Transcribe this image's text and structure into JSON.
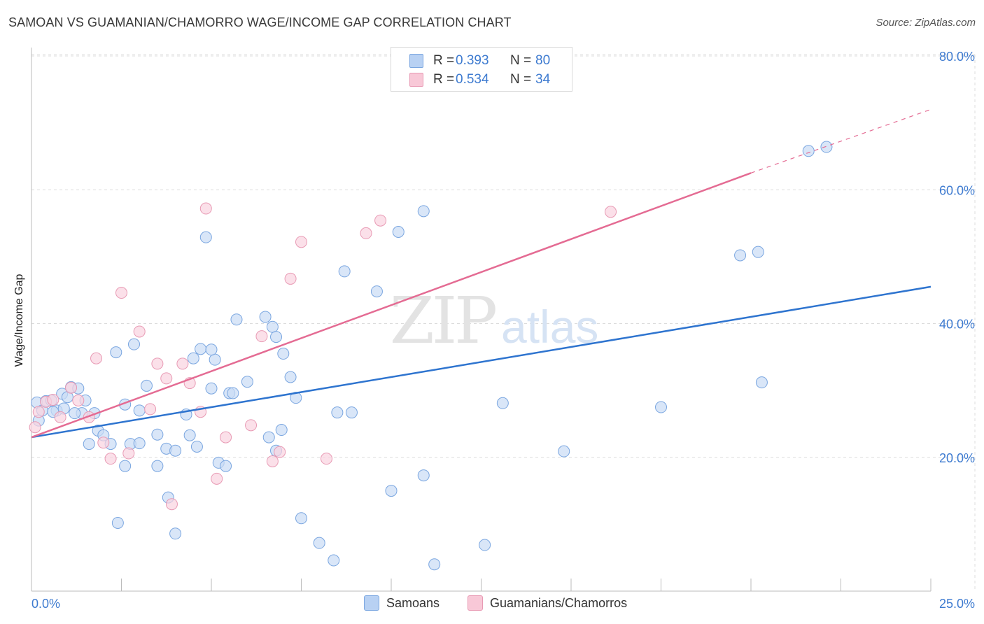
{
  "title": "SAMOAN VS GUAMANIAN/CHAMORRO WAGE/INCOME GAP CORRELATION CHART",
  "source": "Source: ZipAtlas.com",
  "watermark": {
    "zip": "ZIP",
    "atlas": "atlas"
  },
  "legend": {
    "r_label": "R =",
    "n_label": "N =",
    "series": [
      {
        "name": "Samoans",
        "r": "0.393",
        "n": "80",
        "fill": "#b8d1f3",
        "stroke": "#7aa6e0"
      },
      {
        "name": "Guamanians/Chamorros",
        "r": "0.534",
        "n": "34",
        "fill": "#f8c8d7",
        "stroke": "#e89ab4"
      }
    ]
  },
  "chart_data": {
    "type": "scatter",
    "title": "SAMOAN VS GUAMANIAN/CHAMORRO WAGE/INCOME GAP CORRELATION CHART",
    "xlabel": "",
    "ylabel": "Wage/Income Gap",
    "xlim": [
      0,
      25
    ],
    "ylim": [
      0,
      80
    ],
    "x_tick_labels": [
      "0.0%",
      "25.0%"
    ],
    "y_ticks": [
      20,
      40,
      60,
      80
    ],
    "y_tick_labels": [
      "20.0%",
      "40.0%",
      "60.0%",
      "80.0%"
    ],
    "grid": true,
    "colors": {
      "blue_point_fill": "#c9dbf5",
      "blue_point_stroke": "#7aa6e0",
      "pink_point_fill": "#f9d3df",
      "pink_point_stroke": "#e89ab4",
      "blue_line": "#2e74cf",
      "pink_line": "#e46b93",
      "tick_label": "#3e7bd0"
    },
    "series": [
      {
        "name": "Samoans",
        "trend": {
          "x0": 0,
          "y0": 23.0,
          "x1": 25,
          "y1": 45.5
        },
        "points": [
          [
            0.15,
            28.2
          ],
          [
            0.3,
            27.0
          ],
          [
            0.4,
            28.4
          ],
          [
            0.55,
            28.5
          ],
          [
            0.7,
            27.0
          ],
          [
            0.85,
            29.5
          ],
          [
            1.0,
            29.0
          ],
          [
            1.1,
            30.5
          ],
          [
            1.3,
            30.3
          ],
          [
            1.5,
            28.5
          ],
          [
            1.4,
            26.6
          ],
          [
            1.2,
            26.6
          ],
          [
            1.75,
            26.6
          ],
          [
            1.85,
            24.0
          ],
          [
            2.0,
            23.3
          ],
          [
            2.2,
            22.0
          ],
          [
            2.35,
            35.7
          ],
          [
            2.6,
            27.9
          ],
          [
            2.85,
            36.9
          ],
          [
            3.0,
            27.0
          ],
          [
            3.2,
            30.7
          ],
          [
            2.75,
            22.0
          ],
          [
            2.6,
            18.7
          ],
          [
            3.0,
            22.1
          ],
          [
            3.5,
            23.4
          ],
          [
            3.75,
            21.3
          ],
          [
            3.5,
            18.7
          ],
          [
            4.0,
            21.0
          ],
          [
            4.3,
            26.4
          ],
          [
            4.4,
            23.3
          ],
          [
            4.5,
            34.8
          ],
          [
            4.7,
            36.2
          ],
          [
            4.6,
            21.6
          ],
          [
            5.1,
            34.6
          ],
          [
            4.85,
            52.9
          ],
          [
            5.0,
            30.3
          ],
          [
            5.2,
            19.2
          ],
          [
            5.4,
            18.7
          ],
          [
            5.5,
            29.6
          ],
          [
            5.0,
            36.1
          ],
          [
            5.7,
            40.6
          ],
          [
            6.0,
            31.3
          ],
          [
            5.6,
            29.6
          ],
          [
            6.5,
            41.0
          ],
          [
            6.7,
            39.5
          ],
          [
            6.8,
            38.0
          ],
          [
            7.0,
            35.5
          ],
          [
            7.2,
            32.0
          ],
          [
            7.35,
            28.9
          ],
          [
            6.95,
            24.1
          ],
          [
            6.6,
            23.0
          ],
          [
            6.8,
            21.0
          ],
          [
            7.5,
            10.9
          ],
          [
            8.5,
            26.7
          ],
          [
            8.9,
            26.7
          ],
          [
            8.7,
            47.8
          ],
          [
            9.6,
            44.8
          ],
          [
            10.2,
            53.7
          ],
          [
            10.9,
            56.8
          ],
          [
            10.0,
            15.0
          ],
          [
            10.9,
            17.3
          ],
          [
            8.0,
            7.2
          ],
          [
            8.4,
            4.6
          ],
          [
            11.2,
            4.0
          ],
          [
            12.6,
            6.9
          ],
          [
            13.1,
            28.1
          ],
          [
            14.8,
            20.9
          ],
          [
            17.5,
            27.5
          ],
          [
            19.7,
            50.2
          ],
          [
            20.2,
            50.7
          ],
          [
            20.3,
            31.2
          ],
          [
            21.6,
            65.8
          ],
          [
            22.1,
            66.4
          ],
          [
            3.8,
            14.0
          ],
          [
            4.0,
            8.6
          ],
          [
            2.4,
            10.2
          ],
          [
            0.6,
            26.8
          ],
          [
            0.2,
            25.5
          ],
          [
            0.9,
            27.3
          ],
          [
            1.6,
            22.0
          ]
        ]
      },
      {
        "name": "Guamanians/Chamorros",
        "trend": {
          "x0": 0,
          "y0": 23.0,
          "x1": 20,
          "y1": 62.5,
          "x_dash_end": 25,
          "y_dash_end": 72.0
        },
        "points": [
          [
            0.1,
            24.5
          ],
          [
            0.2,
            26.8
          ],
          [
            0.4,
            28.3
          ],
          [
            0.6,
            28.6
          ],
          [
            0.8,
            26.0
          ],
          [
            1.1,
            30.4
          ],
          [
            1.3,
            28.5
          ],
          [
            1.6,
            26.0
          ],
          [
            1.8,
            34.8
          ],
          [
            2.0,
            22.2
          ],
          [
            2.2,
            19.8
          ],
          [
            2.5,
            44.6
          ],
          [
            2.7,
            20.6
          ],
          [
            3.0,
            38.8
          ],
          [
            3.3,
            27.2
          ],
          [
            3.5,
            34.0
          ],
          [
            3.75,
            31.8
          ],
          [
            3.9,
            13.0
          ],
          [
            4.2,
            34.0
          ],
          [
            4.4,
            31.1
          ],
          [
            4.7,
            26.8
          ],
          [
            4.85,
            57.2
          ],
          [
            5.15,
            16.8
          ],
          [
            5.4,
            23.0
          ],
          [
            6.1,
            24.8
          ],
          [
            6.4,
            38.1
          ],
          [
            6.7,
            19.4
          ],
          [
            6.9,
            20.8
          ],
          [
            7.2,
            46.7
          ],
          [
            7.5,
            52.2
          ],
          [
            8.2,
            19.8
          ],
          [
            9.3,
            53.5
          ],
          [
            9.7,
            55.4
          ],
          [
            16.1,
            56.7
          ]
        ]
      }
    ]
  }
}
